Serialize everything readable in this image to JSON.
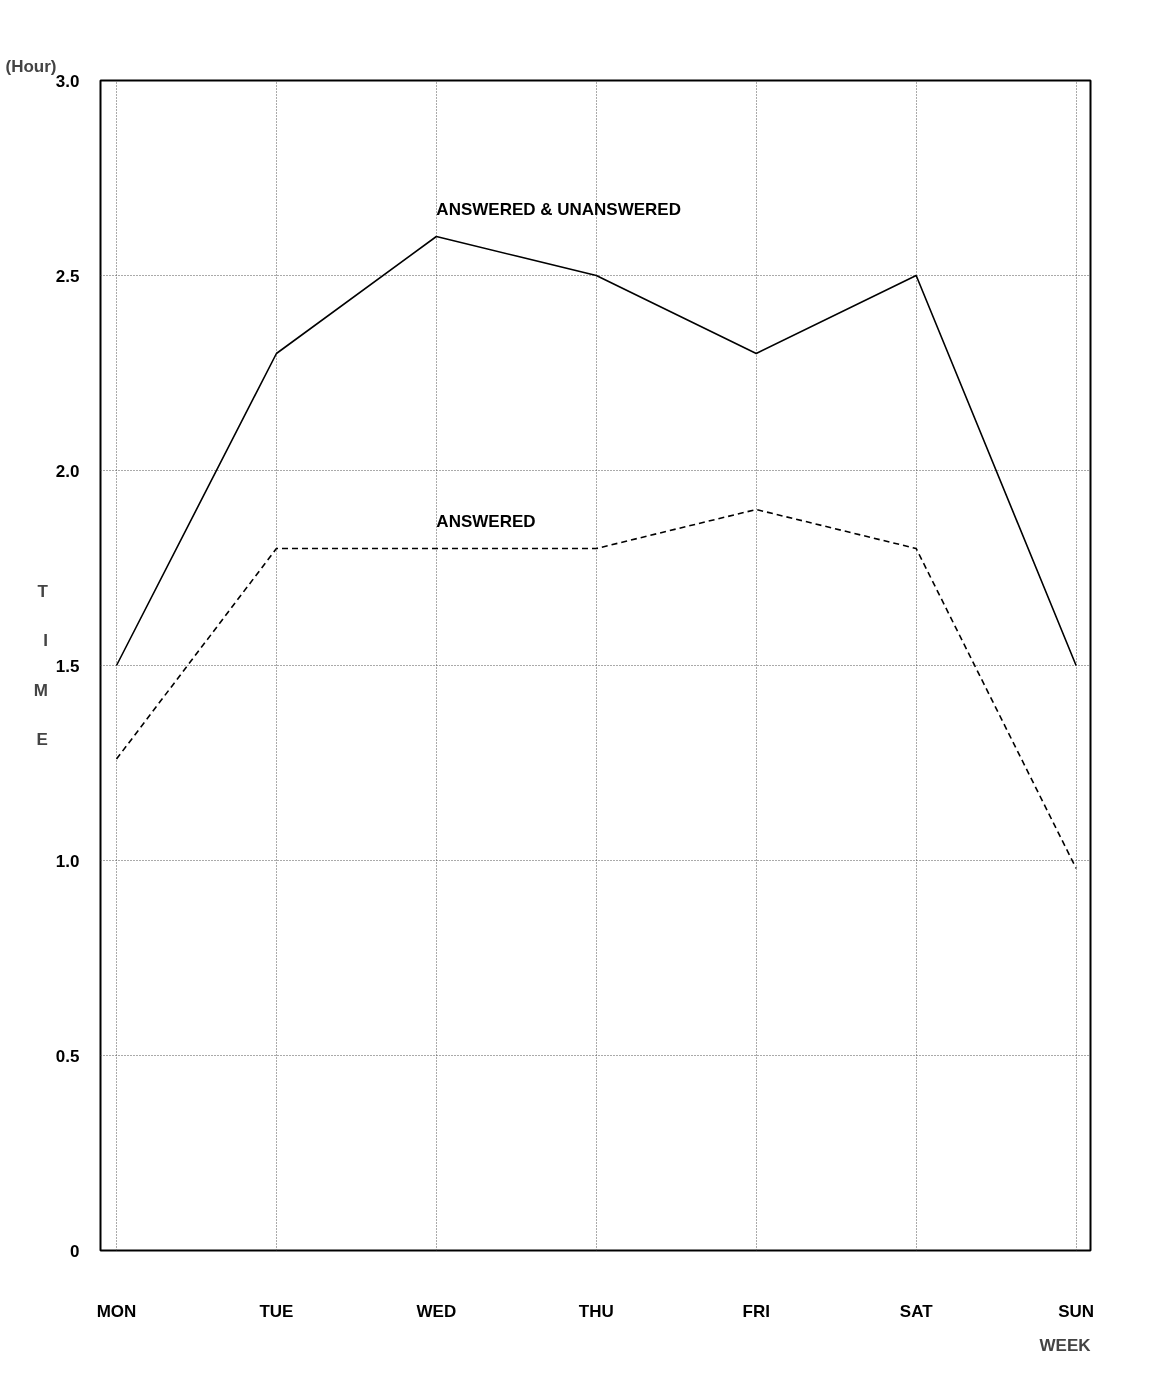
{
  "chart_data": {
    "type": "line",
    "xlabel": "WEEK",
    "ylabel": "TIME",
    "annotations": [
      "(Hour)"
    ],
    "categories": [
      "MON",
      "TUE",
      "WED",
      "THU",
      "FRI",
      "SAT",
      "SUN"
    ],
    "series": [
      {
        "name": "ANSWERED & UNANSWERED",
        "color": "#000000",
        "line_style": "solid",
        "values": [
          1.5,
          2.3,
          2.6,
          2.5,
          2.3,
          2.5,
          1.5
        ]
      },
      {
        "name": "ANSWERED",
        "color": "#000000",
        "line_style": "dashed",
        "values": [
          1.26,
          1.8,
          1.8,
          1.8,
          1.9,
          1.8,
          0.98
        ]
      }
    ],
    "ylim": [
      0,
      3.0
    ],
    "yticks": [
      0,
      {
        "value": 0.5,
        "label": "0.5"
      },
      {
        "value": 1.0,
        "label": "1.0"
      },
      {
        "value": 1.5,
        "label": "1.5"
      },
      {
        "value": 2.0,
        "label": "2.0"
      },
      {
        "value": 2.5,
        "label": "2.5"
      },
      {
        "value": 3.0,
        "label": "3.0"
      }
    ],
    "grid": true,
    "legend": false,
    "marker": "none"
  }
}
